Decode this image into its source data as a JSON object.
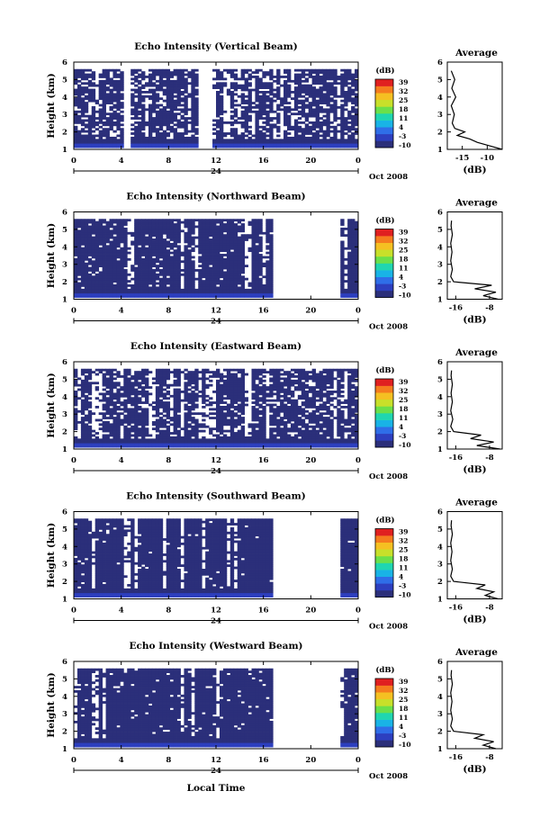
{
  "figure": {
    "shared_xlabel": "Local Time",
    "date_label": "Oct 2008",
    "day_label": "24",
    "time_ticks": [
      "0",
      "4",
      "8",
      "12",
      "16",
      "20",
      "0"
    ],
    "colorbar_unit": "(dB)",
    "colorbar_ticks": [
      "39",
      "32",
      "25",
      "18",
      "11",
      "4",
      "-3",
      "-10"
    ],
    "colorbar_colors": [
      "#2b2f7a",
      "#2d3fbf",
      "#2f6ee8",
      "#19b3e6",
      "#1fd6b0",
      "#6be04a",
      "#c8e02a",
      "#f5c022",
      "#f57c1e",
      "#e02020"
    ],
    "avg_title": "Average",
    "avg_xlabel": "(dB)",
    "avg_series_color": "#000000"
  },
  "chart_data": [
    {
      "type": "heatmap",
      "title": "Echo Intensity (Vertical Beam)",
      "xlabel": "",
      "ylabel": "Height (km)",
      "x_unit": "hours local time",
      "xlim": [
        0,
        24
      ],
      "ylim": [
        1,
        6
      ],
      "yticks": [
        "1",
        "2",
        "3",
        "4",
        "5",
        "6"
      ],
      "colorbar": {
        "label": "(dB)",
        "range": [
          -10,
          39
        ]
      },
      "valid_time_ranges": [
        [
          0,
          4
        ],
        [
          4.6,
          10.5
        ],
        [
          11.5,
          24
        ]
      ],
      "data_max_height_km": 5.5,
      "coverage_fraction": 0.7,
      "dominant_level_dB": -10,
      "near_ground_level_dB": -3,
      "average_profile": {
        "xticks": [
          "-15",
          "-10"
        ],
        "xlim": [
          -18,
          -7
        ],
        "ylim": [
          1,
          6
        ],
        "height_km": [
          1.0,
          1.2,
          1.4,
          1.6,
          1.8,
          2.0,
          2.2,
          2.5,
          3.0,
          3.5,
          4.0,
          4.5,
          5.0,
          5.5
        ],
        "dB": [
          -7.0,
          -9.5,
          -12.0,
          -13.5,
          -16.0,
          -14.5,
          -16.5,
          -17.0,
          -16.6,
          -17.2,
          -16.3,
          -17.1,
          -16.5,
          -17.2
        ]
      }
    },
    {
      "type": "heatmap",
      "title": "Echo Intensity (Northward Beam)",
      "xlabel": "",
      "ylabel": "Height (km)",
      "x_unit": "hours local time",
      "xlim": [
        0,
        24
      ],
      "ylim": [
        1,
        6
      ],
      "yticks": [
        "1",
        "2",
        "3",
        "4",
        "5",
        "6"
      ],
      "colorbar": {
        "label": "(dB)",
        "range": [
          -10,
          39
        ]
      },
      "valid_time_ranges": [
        [
          0,
          16.7
        ],
        [
          17.5,
          17.7
        ],
        [
          22.5,
          24
        ]
      ],
      "data_max_height_km": 5.5,
      "coverage_fraction": 0.86,
      "dominant_level_dB": -10,
      "near_ground_level_dB": -3,
      "average_profile": {
        "xticks": [
          "-16",
          "-8"
        ],
        "xlim": [
          -18,
          -5
        ],
        "ylim": [
          1,
          6
        ],
        "height_km": [
          1.0,
          1.2,
          1.4,
          1.6,
          1.8,
          2.0,
          2.3,
          2.7,
          3.2,
          3.7,
          4.2,
          4.7,
          5.2,
          5.5
        ],
        "dB": [
          -6.0,
          -9.5,
          -6.5,
          -11.5,
          -7.5,
          -16.5,
          -17.2,
          -16.8,
          -17.2,
          -16.9,
          -17.2,
          -16.8,
          -17.1,
          -17.0
        ]
      }
    },
    {
      "type": "heatmap",
      "title": "Echo Intensity (Eastward Beam)",
      "xlabel": "",
      "ylabel": "Height (km)",
      "x_unit": "hours local time",
      "xlim": [
        0,
        24
      ],
      "ylim": [
        1,
        6
      ],
      "yticks": [
        "1",
        "2",
        "3",
        "4",
        "5",
        "6"
      ],
      "colorbar": {
        "label": "(dB)",
        "range": [
          -10,
          39
        ]
      },
      "valid_time_ranges": [
        [
          0,
          17.5
        ],
        [
          17.7,
          24
        ]
      ],
      "data_max_height_km": 5.5,
      "coverage_fraction": 0.75,
      "dominant_level_dB": -10,
      "near_ground_level_dB": -3,
      "average_profile": {
        "xticks": [
          "-16",
          "-8"
        ],
        "xlim": [
          -18,
          -5
        ],
        "ylim": [
          1,
          6
        ],
        "height_km": [
          1.0,
          1.2,
          1.4,
          1.6,
          1.8,
          2.0,
          2.3,
          2.7,
          3.2,
          3.7,
          4.2,
          4.7,
          5.2,
          5.5
        ],
        "dB": [
          -5.5,
          -11.0,
          -7.0,
          -12.5,
          -10.0,
          -16.5,
          -17.2,
          -16.7,
          -17.2,
          -16.8,
          -17.1,
          -16.8,
          -17.1,
          -17.0
        ]
      }
    },
    {
      "type": "heatmap",
      "title": "Echo Intensity (Southward Beam)",
      "xlabel": "",
      "ylabel": "Height (km)",
      "x_unit": "hours local time",
      "xlim": [
        0,
        24
      ],
      "ylim": [
        1,
        6
      ],
      "yticks": [
        "1",
        "2",
        "3",
        "4",
        "5",
        "6"
      ],
      "colorbar": {
        "label": "(dB)",
        "range": [
          -10,
          39
        ]
      },
      "valid_time_ranges": [
        [
          0,
          16.7
        ],
        [
          17.5,
          17.7
        ],
        [
          22.5,
          24
        ]
      ],
      "data_max_height_km": 5.5,
      "coverage_fraction": 0.88,
      "dominant_level_dB": -10,
      "near_ground_level_dB": -3,
      "average_profile": {
        "xticks": [
          "-16",
          "-8"
        ],
        "xlim": [
          -18,
          -5
        ],
        "ylim": [
          1,
          6
        ],
        "height_km": [
          1.0,
          1.2,
          1.4,
          1.6,
          1.8,
          2.0,
          2.3,
          2.7,
          3.2,
          3.7,
          4.2,
          4.7,
          5.2,
          5.5
        ],
        "dB": [
          -6.0,
          -9.0,
          -7.0,
          -11.0,
          -9.0,
          -16.5,
          -17.2,
          -16.8,
          -17.2,
          -16.9,
          -17.2,
          -16.8,
          -17.1,
          -17.0
        ]
      }
    },
    {
      "type": "heatmap",
      "title": "Echo Intensity (Westward Beam)",
      "xlabel": "Local Time",
      "ylabel": "Height (km)",
      "x_unit": "hours local time",
      "xlim": [
        0,
        24
      ],
      "ylim": [
        1,
        6
      ],
      "yticks": [
        "1",
        "2",
        "3",
        "4",
        "5",
        "6"
      ],
      "colorbar": {
        "label": "(dB)",
        "range": [
          -10,
          39
        ]
      },
      "valid_time_ranges": [
        [
          0,
          16.7
        ],
        [
          17.5,
          17.7
        ],
        [
          22.5,
          24
        ]
      ],
      "data_max_height_km": 5.5,
      "coverage_fraction": 0.88,
      "dominant_level_dB": -10,
      "near_ground_level_dB": -3,
      "average_profile": {
        "xticks": [
          "-16",
          "-8"
        ],
        "xlim": [
          -18,
          -5
        ],
        "ylim": [
          1,
          6
        ],
        "height_km": [
          1.0,
          1.2,
          1.4,
          1.6,
          1.8,
          2.0,
          2.3,
          2.7,
          3.2,
          3.7,
          4.2,
          4.7,
          5.2,
          5.5
        ],
        "dB": [
          -6.5,
          -9.5,
          -7.0,
          -11.5,
          -9.5,
          -16.5,
          -17.2,
          -16.8,
          -17.2,
          -16.9,
          -17.2,
          -16.8,
          -17.1,
          -17.0
        ]
      }
    }
  ]
}
